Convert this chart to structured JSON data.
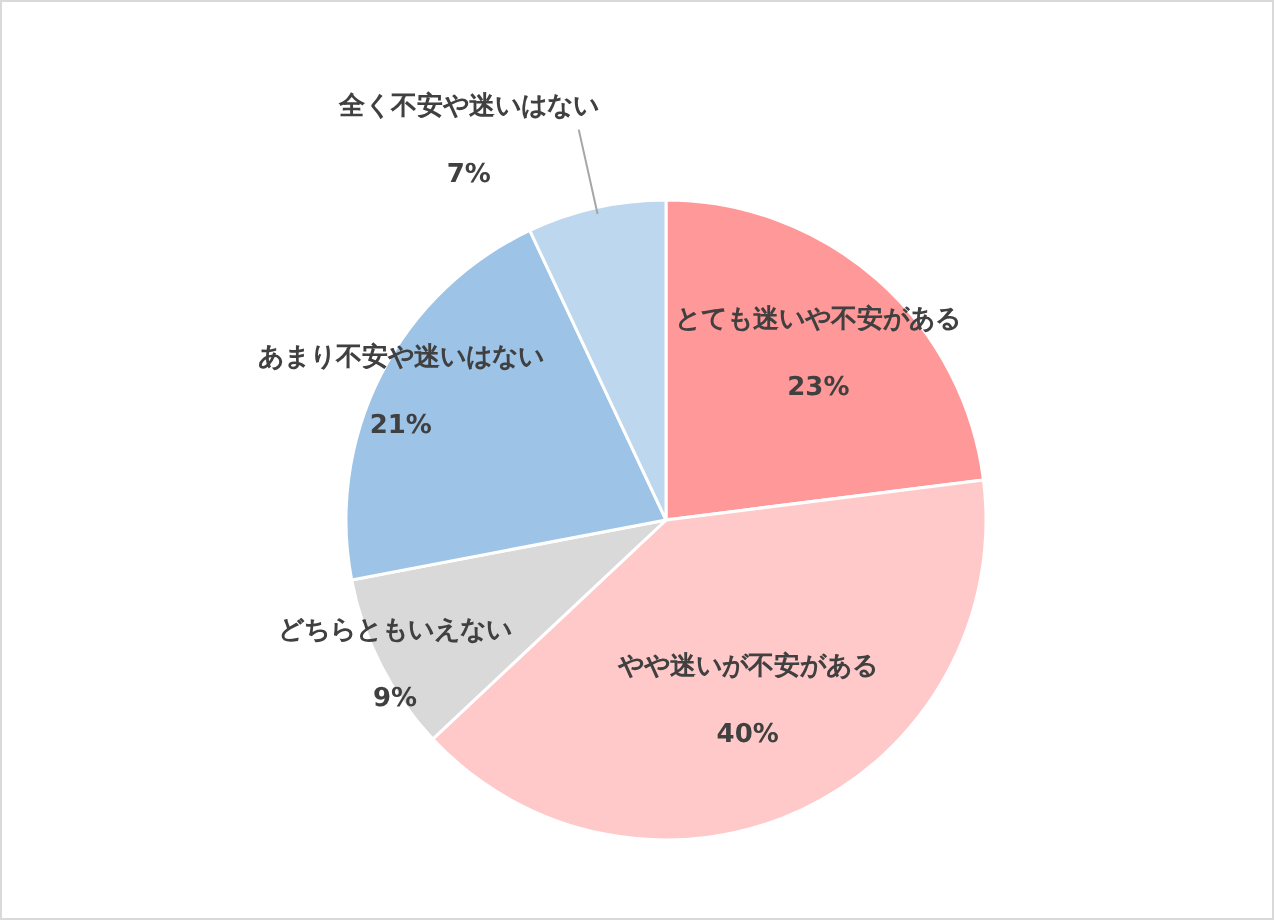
{
  "chart_data": {
    "type": "pie",
    "categories": [
      "とても迷いや不安がある",
      "やや迷いが不安がある",
      "どちらともいえない",
      "あまり不安や迷いはない",
      "全く不安や迷いはない"
    ],
    "values": [
      23,
      40,
      9,
      21,
      7
    ],
    "value_labels": [
      "23%",
      "40%",
      "9%",
      "21%",
      "7%"
    ],
    "colors": [
      "#ff9999",
      "#ffc9c9",
      "#d9d9d9",
      "#9dc3e6",
      "#bdd7ee"
    ]
  }
}
